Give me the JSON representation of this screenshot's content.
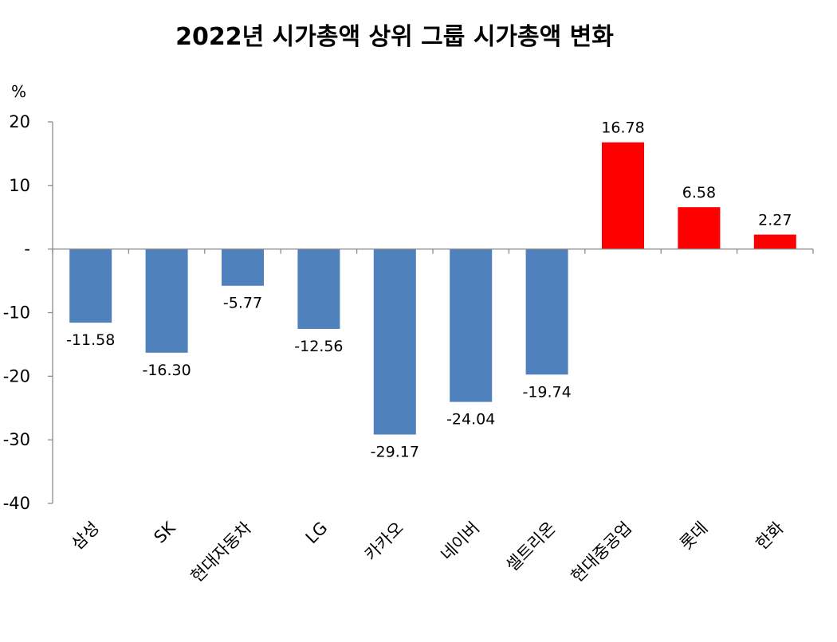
{
  "chart_data": {
    "type": "bar",
    "title": "2022년 시가총액 상위 그룹 시가총액 변화",
    "ylabel": "%",
    "xlabel": "",
    "ylim": [
      -40,
      20
    ],
    "yticks": [
      20,
      10,
      0,
      -10,
      -20,
      -30,
      -40
    ],
    "ytick_labels": [
      "20",
      "10",
      "-",
      "-10",
      "-20",
      "-30",
      "-40"
    ],
    "categories": [
      "삼성",
      "SK",
      "현대자동차",
      "LG",
      "카카오",
      "네이버",
      "셀트리온",
      "현대중공업",
      "롯데",
      "한화"
    ],
    "values": [
      -11.58,
      -16.3,
      -5.77,
      -12.56,
      -29.17,
      -24.04,
      -19.74,
      16.78,
      6.58,
      2.27
    ],
    "value_labels": [
      "-11.58",
      "-16.30",
      "-5.77",
      "-12.56",
      "-29.17",
      "-24.04",
      "-19.74",
      "16.78",
      "6.58",
      "2.27"
    ],
    "grid": false,
    "legend": "none",
    "colors": {
      "negative": "#4f81bd",
      "positive": "#ff0000"
    }
  }
}
